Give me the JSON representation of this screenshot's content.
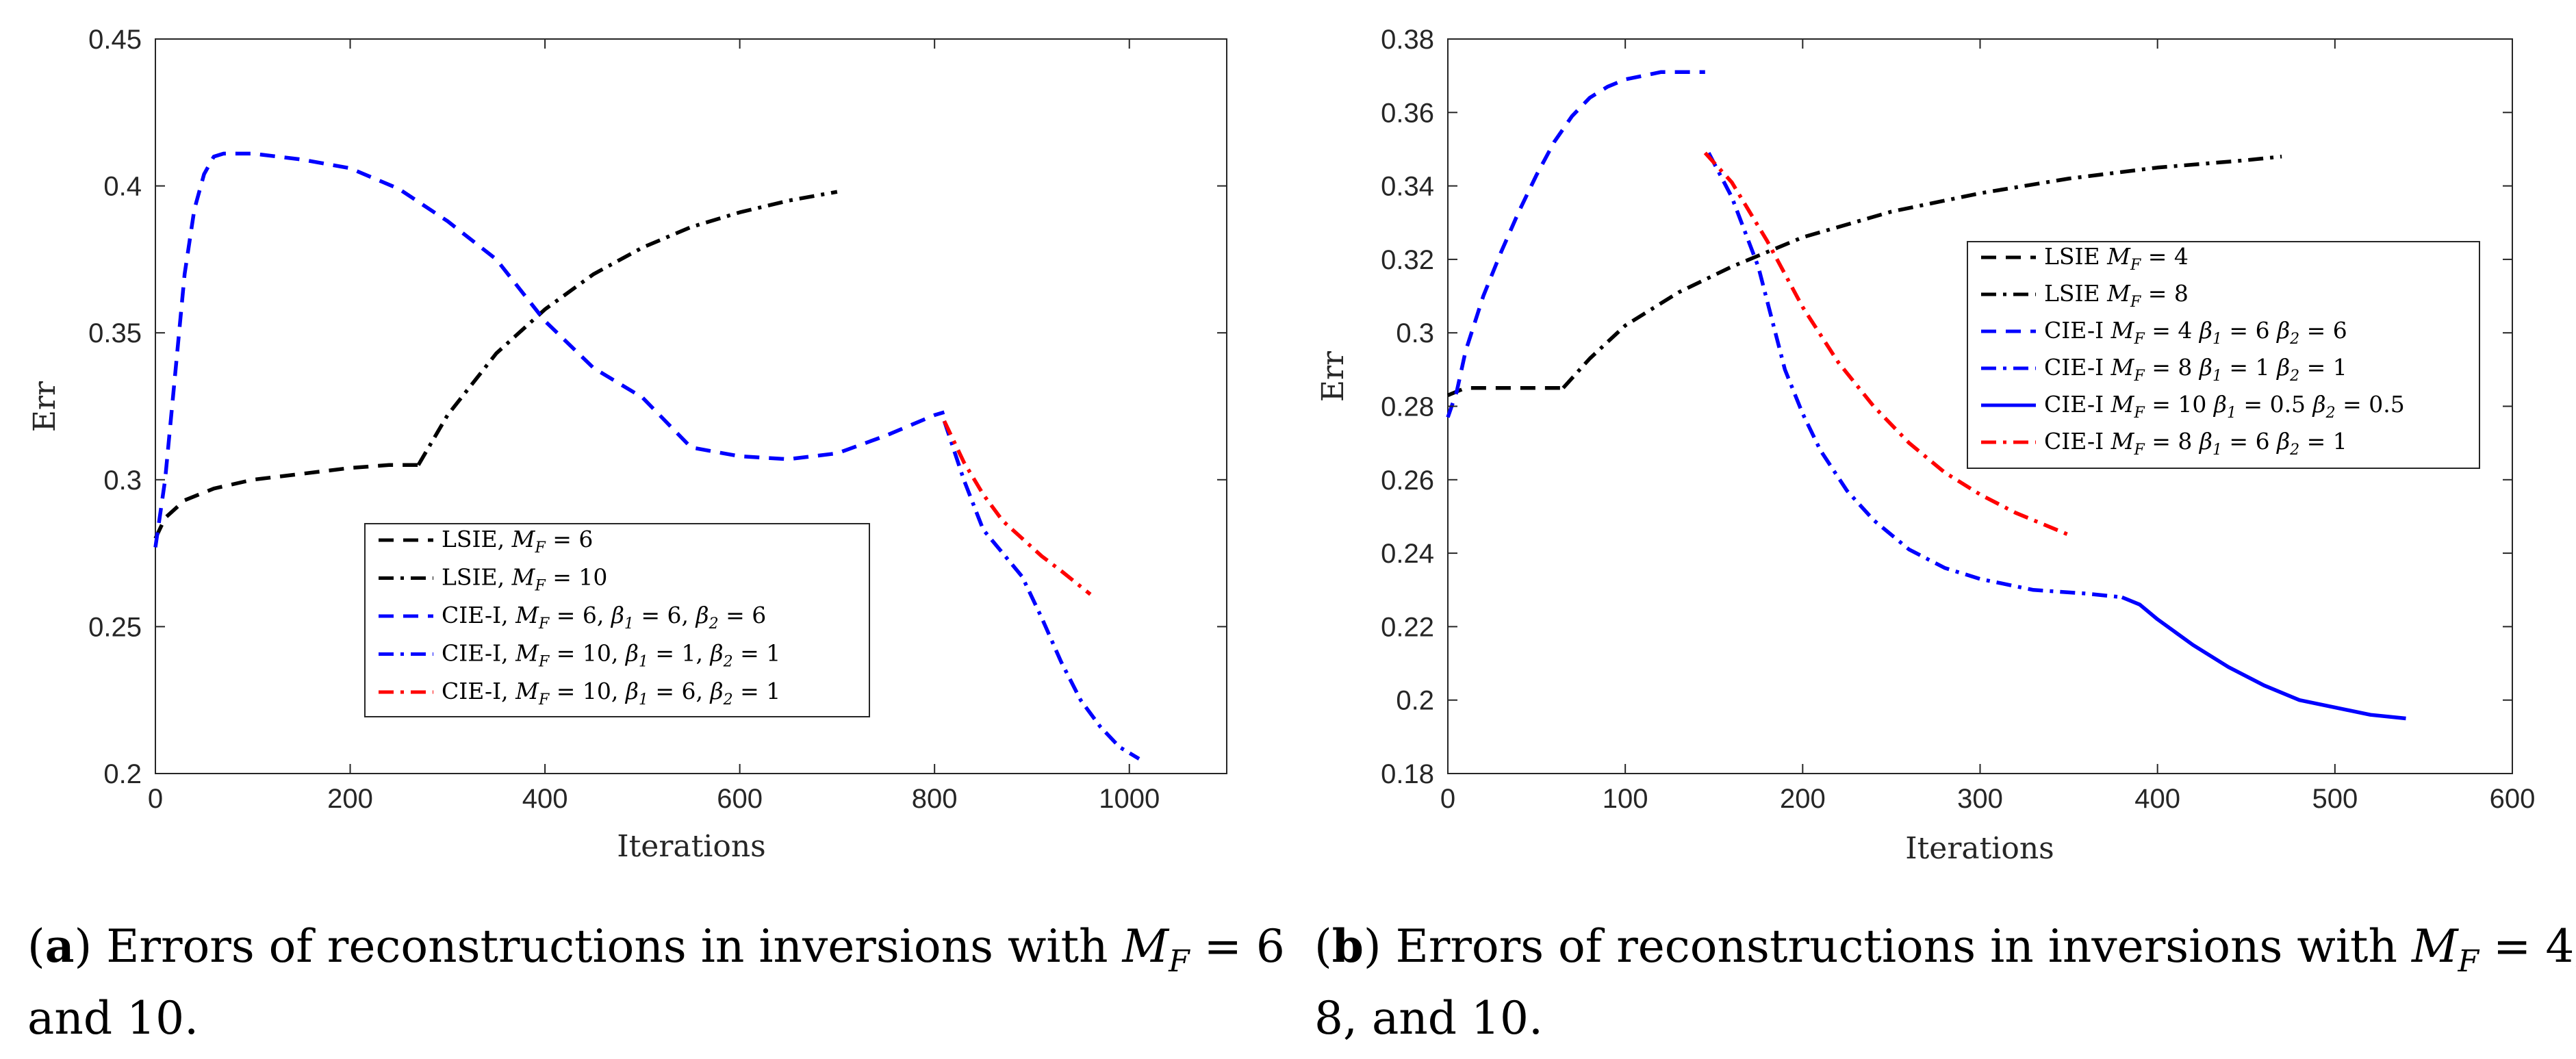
{
  "chart_data": [
    {
      "type": "line",
      "panel": "a",
      "xlabel": "Iterations",
      "ylabel": "Err",
      "xlim": [
        0,
        1100
      ],
      "ylim": [
        0.2,
        0.45
      ],
      "xticks": [
        0,
        200,
        400,
        600,
        800,
        1000
      ],
      "xtick_labels": [
        "0",
        "200",
        "400",
        "600",
        "800",
        "1000"
      ],
      "yticks": [
        0.2,
        0.25,
        0.3,
        0.35,
        0.4,
        0.45
      ],
      "ytick_labels": [
        "0.2",
        "0.25",
        "0.3",
        "0.35",
        "0.4",
        "0.45"
      ],
      "legend_placement": "lower-center",
      "series": [
        {
          "name": "LSIE, M_F = 6",
          "legend": [
            "LSIE, ",
            "M",
            "F",
            " = 6"
          ],
          "color": "#000000",
          "style": "dashed",
          "x": [
            0,
            10,
            30,
            60,
            100,
            150,
            200,
            240,
            270
          ],
          "y": [
            0.28,
            0.287,
            0.293,
            0.297,
            0.3,
            0.302,
            0.304,
            0.305,
            0.305
          ]
        },
        {
          "name": "LSIE, M_F = 10",
          "legend": [
            "LSIE, ",
            "M",
            "F",
            " = 10"
          ],
          "color": "#000000",
          "style": "dashdot",
          "x": [
            270,
            300,
            350,
            400,
            450,
            500,
            550,
            600,
            650,
            700
          ],
          "y": [
            0.305,
            0.322,
            0.343,
            0.358,
            0.37,
            0.379,
            0.386,
            0.391,
            0.395,
            0.398
          ]
        },
        {
          "name": "CIE-I, M_F = 6, β1 = 6, β2 = 6",
          "legend": [
            "CIE-I, ",
            "M",
            "F",
            " = 6, ",
            "β",
            "1",
            " = 6, ",
            "β",
            "2",
            " = 6"
          ],
          "color": "#0000ff",
          "style": "dashed",
          "x": [
            0,
            10,
            20,
            30,
            40,
            50,
            60,
            70,
            80,
            100,
            150,
            200,
            250,
            300,
            350,
            400,
            450,
            500,
            550,
            600,
            650,
            700,
            750,
            800,
            810
          ],
          "y": [
            0.277,
            0.3,
            0.335,
            0.37,
            0.392,
            0.404,
            0.41,
            0.411,
            0.411,
            0.411,
            0.409,
            0.406,
            0.399,
            0.388,
            0.375,
            0.354,
            0.338,
            0.328,
            0.311,
            0.308,
            0.307,
            0.309,
            0.315,
            0.322,
            0.323
          ]
        },
        {
          "name": "CIE-I, M_F = 10, β1 = 1, β2 = 1",
          "legend": [
            "CIE-I, ",
            "M",
            "F",
            " = 10, ",
            "β",
            "1",
            " = 1, ",
            "β",
            "2",
            " = 1"
          ],
          "color": "#0000ff",
          "style": "dashdot",
          "x": [
            810,
            830,
            850,
            870,
            890,
            910,
            930,
            950,
            970,
            990,
            1010
          ],
          "y": [
            0.32,
            0.3,
            0.283,
            0.275,
            0.267,
            0.253,
            0.238,
            0.225,
            0.216,
            0.209,
            0.205
          ]
        },
        {
          "name": "CIE-I, M_F = 10, β1 = 6, β2 = 1",
          "legend": [
            "CIE-I, ",
            "M",
            "F",
            " = 10, ",
            "β",
            "1",
            " = 6, ",
            "β",
            "2",
            " = 1"
          ],
          "color": "#ff0000",
          "style": "dashdot",
          "x": [
            810,
            830,
            850,
            870,
            890,
            910,
            930,
            960
          ],
          "y": [
            0.32,
            0.306,
            0.295,
            0.286,
            0.28,
            0.274,
            0.269,
            0.261
          ]
        }
      ],
      "caption": {
        "label": "a",
        "pre": "Errors of reconstructions in inversions with ",
        "var": "M",
        "sub": "F",
        "post": " = 6",
        "line2": "and 10."
      }
    },
    {
      "type": "line",
      "panel": "b",
      "xlabel": "Iterations",
      "ylabel": "Err",
      "xlim": [
        0,
        600
      ],
      "ylim": [
        0.18,
        0.38
      ],
      "xticks": [
        0,
        100,
        200,
        300,
        400,
        500,
        600
      ],
      "xtick_labels": [
        "0",
        "100",
        "200",
        "300",
        "400",
        "500",
        "600"
      ],
      "yticks": [
        0.18,
        0.2,
        0.22,
        0.24,
        0.26,
        0.28,
        0.3,
        0.32,
        0.34,
        0.36,
        0.38
      ],
      "ytick_labels": [
        "0.18",
        "0.2",
        "0.22",
        "0.24",
        "0.26",
        "0.28",
        "0.3",
        "0.32",
        "0.34",
        "0.36",
        "0.38"
      ],
      "legend_placement": "right",
      "series": [
        {
          "name": "LSIE M_F = 4",
          "legend": [
            "LSIE ",
            "M",
            "F",
            " = 4"
          ],
          "color": "#000000",
          "style": "dashed",
          "x": [
            0,
            5,
            10,
            20,
            40,
            60,
            65
          ],
          "y": [
            0.283,
            0.284,
            0.285,
            0.285,
            0.285,
            0.285,
            0.285
          ]
        },
        {
          "name": "LSIE M_F = 8",
          "legend": [
            "LSIE ",
            "M",
            "F",
            " = 8"
          ],
          "color": "#000000",
          "style": "dashdot",
          "x": [
            65,
            80,
            100,
            130,
            160,
            200,
            250,
            300,
            350,
            400,
            450,
            470
          ],
          "y": [
            0.285,
            0.293,
            0.302,
            0.311,
            0.318,
            0.326,
            0.333,
            0.338,
            0.342,
            0.345,
            0.347,
            0.348
          ]
        },
        {
          "name": "CIE-I M_F = 4 β1 = 6 β2 = 6",
          "legend": [
            "CIE-I ",
            "M",
            "F",
            " = 4 ",
            "β",
            "1",
            " = 6 ",
            "β",
            "2",
            " = 6"
          ],
          "color": "#0000ff",
          "style": "dashed",
          "x": [
            0,
            5,
            10,
            20,
            30,
            40,
            50,
            60,
            70,
            80,
            90,
            100,
            110,
            120,
            130,
            145
          ],
          "y": [
            0.277,
            0.284,
            0.295,
            0.31,
            0.322,
            0.333,
            0.343,
            0.352,
            0.359,
            0.364,
            0.367,
            0.369,
            0.37,
            0.371,
            0.371,
            0.371
          ]
        },
        {
          "name": "CIE-I M_F = 8 β1 = 1 β2 = 1",
          "legend": [
            "CIE-I ",
            "M",
            "F",
            " = 8 ",
            "β",
            "1",
            " = 1 ",
            "β",
            "2",
            " = 1"
          ],
          "color": "#0000ff",
          "style": "dashdot",
          "x": [
            147,
            160,
            175,
            190,
            200,
            210,
            225,
            240,
            260,
            280,
            300,
            330,
            360,
            380
          ],
          "y": [
            0.349,
            0.337,
            0.318,
            0.29,
            0.278,
            0.268,
            0.257,
            0.249,
            0.241,
            0.236,
            0.233,
            0.23,
            0.229,
            0.228
          ]
        },
        {
          "name": "CIE-I M_F = 10 β1 = 0.5 β2 = 0.5",
          "legend": [
            "CIE-I ",
            "M",
            "F",
            " = 10 ",
            "β",
            "1",
            " = 0.5 ",
            "β",
            "2",
            " = 0.5"
          ],
          "color": "#0000ff",
          "style": "solid",
          "x": [
            380,
            390,
            400,
            420,
            440,
            460,
            480,
            500,
            520,
            540
          ],
          "y": [
            0.228,
            0.226,
            0.222,
            0.215,
            0.209,
            0.204,
            0.2,
            0.198,
            0.196,
            0.195
          ]
        },
        {
          "name": "CIE-I M_F = 8 β1 = 6 β2 = 1",
          "legend": [
            "CIE-I ",
            "M",
            "F",
            " = 8 ",
            "β",
            "1",
            " = 6 ",
            "β",
            "2",
            " = 1"
          ],
          "color": "#ff0000",
          "style": "dashdot",
          "x": [
            145,
            160,
            180,
            200,
            220,
            240,
            260,
            280,
            300,
            320,
            350
          ],
          "y": [
            0.349,
            0.341,
            0.325,
            0.307,
            0.292,
            0.28,
            0.27,
            0.262,
            0.256,
            0.251,
            0.245
          ]
        }
      ],
      "caption": {
        "label": "b",
        "pre": "Errors of reconstructions in inversions with ",
        "var": "M",
        "sub": "F",
        "post": " = 4,",
        "line2": "8, and 10."
      }
    }
  ]
}
